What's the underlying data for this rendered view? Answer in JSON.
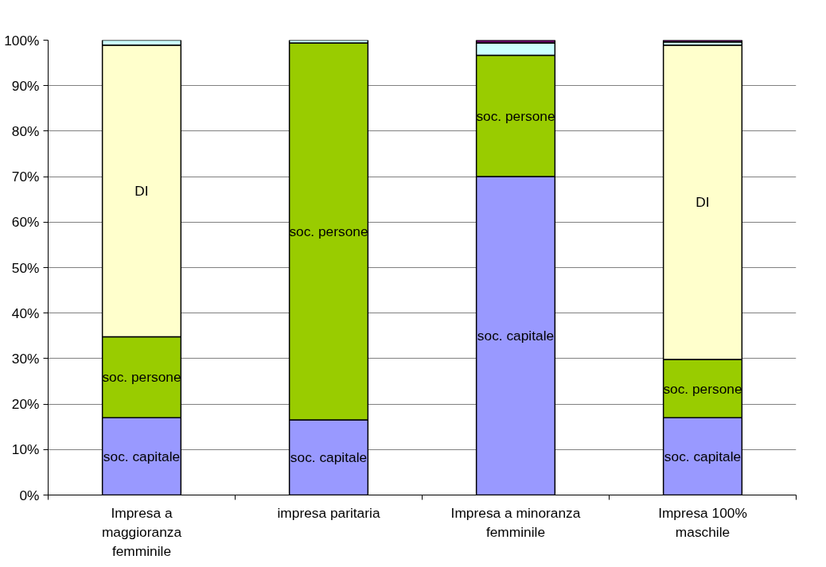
{
  "chart_data": {
    "type": "bar",
    "stacked": true,
    "categories": [
      "Impresa a maggioranza femminile",
      "impresa paritaria",
      "Impresa a minoranza femminile",
      "Impresa 100% maschile"
    ],
    "series": [
      {
        "name": "soc. capitale",
        "color": "#9999ff",
        "values": [
          17.0,
          16.5,
          70.0,
          17.0
        ]
      },
      {
        "name": "soc. persone",
        "color": "#99cc00",
        "values": [
          17.8,
          82.9,
          26.7,
          12.8
        ]
      },
      {
        "name": "DI",
        "color": "#ffffcc",
        "values": [
          64.1,
          0,
          0,
          69.1
        ]
      },
      {
        "color": "#ccffff",
        "values": [
          1.1,
          0.6,
          2.7,
          0.7
        ]
      },
      {
        "color": "#660066",
        "values": [
          0,
          0,
          0.6,
          0.4
        ]
      }
    ],
    "ylim": [
      0,
      100
    ],
    "yticks": [
      {
        "value": 0,
        "label": "0%"
      },
      {
        "value": 10,
        "label": "10%"
      },
      {
        "value": 20,
        "label": "20%"
      },
      {
        "value": 30,
        "label": "30%"
      },
      {
        "value": 40,
        "label": "40%"
      },
      {
        "value": 50,
        "label": "50%"
      },
      {
        "value": 60,
        "label": "60%"
      },
      {
        "value": 70,
        "label": "70%"
      },
      {
        "value": 80,
        "label": "80%"
      },
      {
        "value": 90,
        "label": "90%"
      },
      {
        "value": 100,
        "label": "100%"
      }
    ],
    "grid": "y",
    "legend": false
  }
}
